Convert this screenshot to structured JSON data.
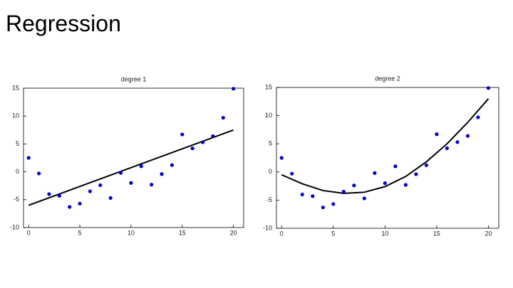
{
  "title": "Regression",
  "chart_data": [
    {
      "type": "scatter",
      "title": "degree 1",
      "x": [
        0,
        1,
        2,
        3,
        4,
        5,
        6,
        7,
        8,
        9,
        10,
        11,
        12,
        13,
        14,
        15,
        16,
        17,
        18,
        19,
        20
      ],
      "values": [
        2.5,
        -0.3,
        -4,
        -4.3,
        -6.3,
        -5.7,
        -3.5,
        -2.4,
        -4.7,
        -0.2,
        -2,
        1,
        -2.3,
        -0.4,
        1.2,
        6.7,
        4.2,
        5.3,
        6.4,
        9.7,
        14.9
      ],
      "color": "#0000cc",
      "fit": {
        "x": [
          0,
          20
        ],
        "values": [
          -6,
          7.5
        ],
        "color": "#000000"
      },
      "xlim": [
        -0.5,
        21
      ],
      "xticks": [
        0,
        5,
        10,
        15,
        20
      ],
      "ylim": [
        -10,
        15
      ],
      "yticks": [
        -10,
        -5,
        0,
        5,
        10,
        15
      ]
    },
    {
      "type": "scatter",
      "title": "degree 2",
      "x": [
        0,
        1,
        2,
        3,
        4,
        5,
        6,
        7,
        8,
        9,
        10,
        11,
        12,
        13,
        14,
        15,
        16,
        17,
        18,
        19,
        20
      ],
      "values": [
        2.5,
        -0.3,
        -4,
        -4.3,
        -6.3,
        -5.7,
        -3.5,
        -2.4,
        -4.7,
        -0.2,
        -2,
        1,
        -2.3,
        -0.4,
        1.2,
        6.7,
        4.2,
        5.3,
        6.4,
        9.7,
        14.9
      ],
      "color": "#0000cc",
      "fit": {
        "x": [
          0,
          2,
          4,
          6,
          8,
          10,
          12,
          14,
          16,
          18,
          20
        ],
        "values": [
          -0.5,
          -2.1,
          -3.3,
          -3.8,
          -3.6,
          -2.6,
          -0.8,
          1.8,
          5.0,
          8.8,
          13.0
        ],
        "color": "#000000"
      },
      "xlim": [
        -0.5,
        21
      ],
      "xticks": [
        0,
        5,
        10,
        15,
        20
      ],
      "ylim": [
        -10,
        15
      ],
      "yticks": [
        -10,
        -5,
        0,
        5,
        10,
        15
      ]
    }
  ]
}
